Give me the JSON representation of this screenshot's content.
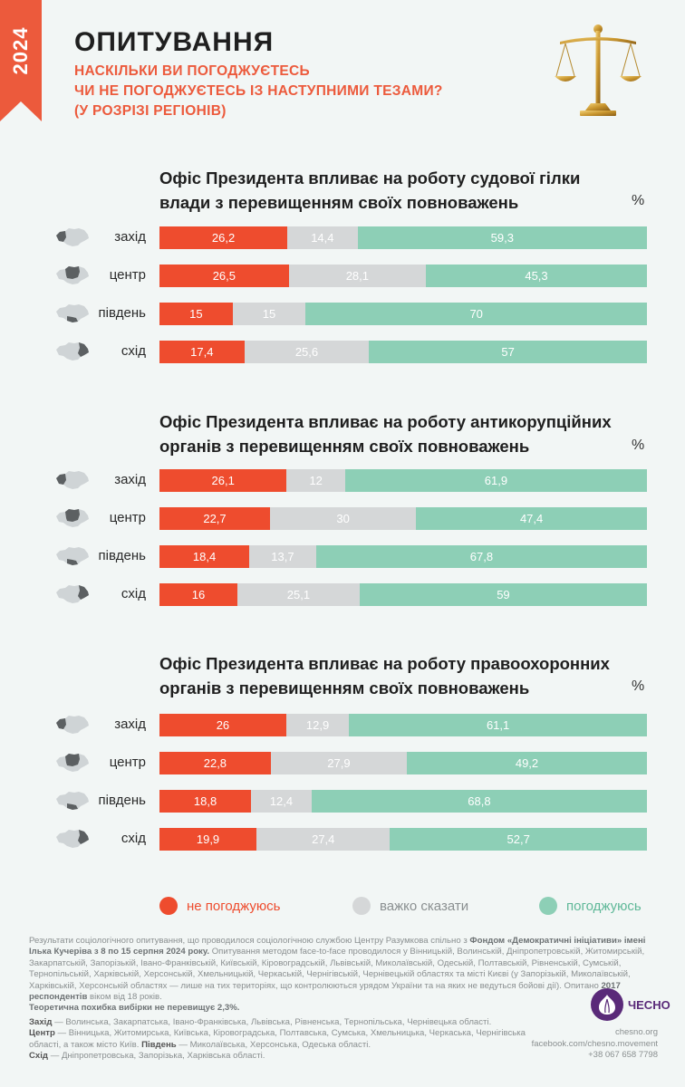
{
  "header": {
    "year": "2024",
    "title": "ОПИТУВАННЯ",
    "subtitle_lines": [
      "НАСКІЛЬКИ ВИ ПОГОДЖУЄТЕСЬ",
      "ЧИ НЕ ПОГОДЖУЄТЕСЬ ІЗ НАСТУПНИМИ ТЕЗАМИ?",
      "(У РОЗРІЗІ РЕГІОНІВ)"
    ],
    "icon": "scales-of-justice-icon"
  },
  "unit_label": "%",
  "colors": {
    "disagree": "#ee4c2e",
    "hard_to_say": "#d5d7d8",
    "agree": "#8dcfb6",
    "accent": "#ec5a3c",
    "logo": "#5a2a79"
  },
  "chart_data": [
    {
      "type": "bar",
      "stacked": true,
      "orientation": "horizontal",
      "title_lines": [
        "Офіс Президента впливає на роботу судової гілки",
        "влади з перевищенням своїх повноважень"
      ],
      "categories": [
        "захід",
        "центр",
        "південь",
        "схід"
      ],
      "series": [
        {
          "name": "не погоджуюсь",
          "values": [
            "26,2",
            "26,5",
            "15",
            "17,4"
          ]
        },
        {
          "name": "важко сказати",
          "values": [
            "14,4",
            "28,1",
            "15",
            "25,6"
          ]
        },
        {
          "name": "погоджуюсь",
          "values": [
            "59,3",
            "45,3",
            "70",
            "57"
          ]
        }
      ]
    },
    {
      "type": "bar",
      "stacked": true,
      "orientation": "horizontal",
      "title_lines": [
        "Офіс Президента впливає на роботу антикорупційних",
        "органів з перевищенням своїх повноважень"
      ],
      "categories": [
        "захід",
        "центр",
        "південь",
        "схід"
      ],
      "series": [
        {
          "name": "не погоджуюсь",
          "values": [
            "26,1",
            "22,7",
            "18,4",
            "16"
          ]
        },
        {
          "name": "важко сказати",
          "values": [
            "12",
            "30",
            "13,7",
            "25,1"
          ]
        },
        {
          "name": "погоджуюсь",
          "values": [
            "61,9",
            "47,4",
            "67,8",
            "59"
          ]
        }
      ]
    },
    {
      "type": "bar",
      "stacked": true,
      "orientation": "horizontal",
      "title_lines": [
        "Офіс Президента впливає на роботу правоохоронних",
        "органів з перевищенням своїх повноважень"
      ],
      "categories": [
        "захід",
        "центр",
        "південь",
        "схід"
      ],
      "series": [
        {
          "name": "не погоджуюсь",
          "values": [
            "26",
            "22,8",
            "18,8",
            "19,9"
          ]
        },
        {
          "name": "важко сказати",
          "values": [
            "12,9",
            "27,9",
            "12,4",
            "27,4"
          ]
        },
        {
          "name": "погоджуюсь",
          "values": [
            "61,1",
            "49,2",
            "68,8",
            "52,7"
          ]
        }
      ]
    }
  ],
  "legend": [
    {
      "label": "не погоджуюсь",
      "color": "#ee4c2e"
    },
    {
      "label": "важко сказати",
      "color": "#d5d7d8"
    },
    {
      "label": "погоджуюсь",
      "color": "#8dcfb6"
    }
  ],
  "footnote": {
    "part1": "Результати соціологічного опитування, що проводилося соціологічною службою Центру Разумкова спільно з ",
    "org": "Фондом «Демократичні ініціативи» імені Ілька Кучеріва з 8 по 15 серпня 2024 року.",
    "part2": " Опитування методом face-to-face проводилося у Вінницькій, Волинській, Дніпропетровській, Житомирській, Закарпатській, Запорізькій, Івано-Франківській, Київській, Кіровоградській, Львівській, Миколаївській, Одеській, Полтавській, Рівненській, Сумській, Тернопільській, Харківській, Херсонській, Хмельницькій, Черкаській, Чернігівській, Чернівецькій областях та місті Києві (у Запорізькій, Миколаївській, Харківській, Херсонській областях — лише на тих територіях, що контролюються урядом України та на яких не ведуться бойові дії). Опитано ",
    "respondents": "2017 респондентів",
    "part3": " віком від 18 років.",
    "error": "Теоретична похибка вибірки не перевищує 2,3%."
  },
  "regions_note": {
    "west_label": "Захід",
    "west": " — Волинська, Закарпатська, Івано-Франківська, Львівська, Рівненська, Тернопільська, Чернівецька області.",
    "center_label": "Центр",
    "center": " — Вінницька, Житомирська, Київська, Кіровоградська, Полтавська, Сумська, Хмельницька, Черкаська, Чернігівська області, а також місто Київ. ",
    "south_label": "Південь",
    "south": " — Миколаївська, Херсонська, Одеська області.",
    "east_label": "Схід",
    "east": " — Дніпропетровська, Запорізька, Харківська області."
  },
  "brand": {
    "logo_text": "ЧЕСНО",
    "site": "chesno.org",
    "facebook": "facebook.com/chesno.movement",
    "phone": "+38 067 658 7798"
  }
}
